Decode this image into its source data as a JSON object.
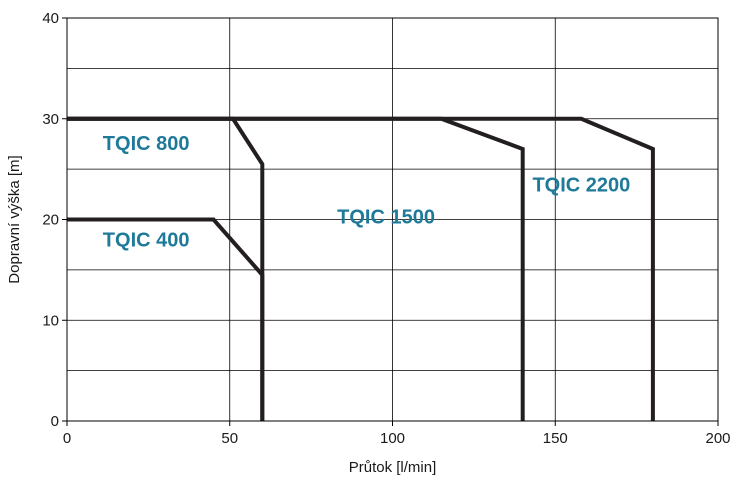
{
  "chart_data": {
    "type": "line",
    "xlabel": "Průtok [l/min]",
    "ylabel": "Dopravní výška [m]",
    "xlim": [
      0,
      200
    ],
    "ylim": [
      0,
      40
    ],
    "x_ticks": [
      "0",
      "50",
      "100",
      "150",
      "200"
    ],
    "y_ticks": [
      "0",
      "10",
      "20",
      "30",
      "40"
    ],
    "grid": true,
    "colors": {
      "line": "#231f20",
      "label": "#1f7a99",
      "grid": "#000000"
    },
    "series": [
      {
        "name": "TQIC 400",
        "points": [
          [
            0,
            20
          ],
          [
            45,
            20
          ],
          [
            60,
            14.5
          ],
          [
            60,
            0
          ]
        ]
      },
      {
        "name": "TQIC 800",
        "points": [
          [
            0,
            30
          ],
          [
            51,
            30
          ],
          [
            60,
            25.5
          ],
          [
            60,
            0
          ]
        ]
      },
      {
        "name": "TQIC 1500",
        "points": [
          [
            0,
            30
          ],
          [
            115,
            30
          ],
          [
            140,
            27
          ],
          [
            140,
            0
          ]
        ]
      },
      {
        "name": "TQIC 2200",
        "points": [
          [
            0,
            30
          ],
          [
            158,
            30
          ],
          [
            180,
            27
          ],
          [
            180,
            0
          ]
        ]
      }
    ]
  }
}
